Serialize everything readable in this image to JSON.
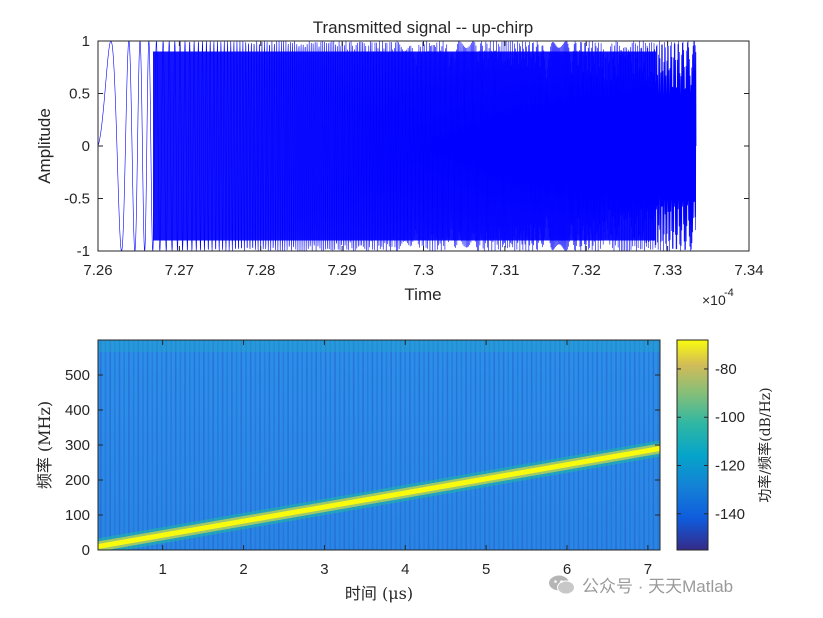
{
  "chart_data": [
    {
      "type": "line",
      "title": "Transmitted signal -- up-chirp",
      "xlabel": "Time",
      "ylabel": "Amplitude",
      "x_exponent_label": "×10",
      "x_exponent_power": "-4",
      "xlim": [
        7.26,
        7.34
      ],
      "ylim": [
        -1,
        1
      ],
      "xticks": [
        "7.26",
        "7.27",
        "7.28",
        "7.29",
        "7.3",
        "7.31",
        "7.32",
        "7.33",
        "7.34"
      ],
      "yticks": [
        "1",
        "0.5",
        "0",
        "-0.5",
        "-1"
      ],
      "signal_x_range": [
        7.26,
        7.3335
      ],
      "series": [
        {
          "values_range": [
            -1,
            1
          ]
        }
      ],
      "line_color": "#0000ff"
    },
    {
      "type": "heatmap",
      "xlabel": "时间 (μs)",
      "ylabel": "频率 (MHz)",
      "xlim": [
        0.2,
        7.15
      ],
      "ylim": [
        0,
        600
      ],
      "xticks": [
        "1",
        "2",
        "3",
        "4",
        "5",
        "6",
        "7"
      ],
      "yticks": [
        "500",
        "400",
        "300",
        "200",
        "100",
        "0"
      ],
      "chirp_line": {
        "x": [
          0.2,
          7.15
        ],
        "y": [
          10,
          290
        ]
      },
      "colorbar": {
        "label": "功率/频率(dB/Hz)",
        "ticks": [
          "-80",
          "-100",
          "-120",
          "-140"
        ],
        "range": [
          -155,
          -68
        ],
        "colormap": "parula"
      }
    }
  ],
  "watermark": {
    "text": "公众号 · 天天Matlab"
  }
}
